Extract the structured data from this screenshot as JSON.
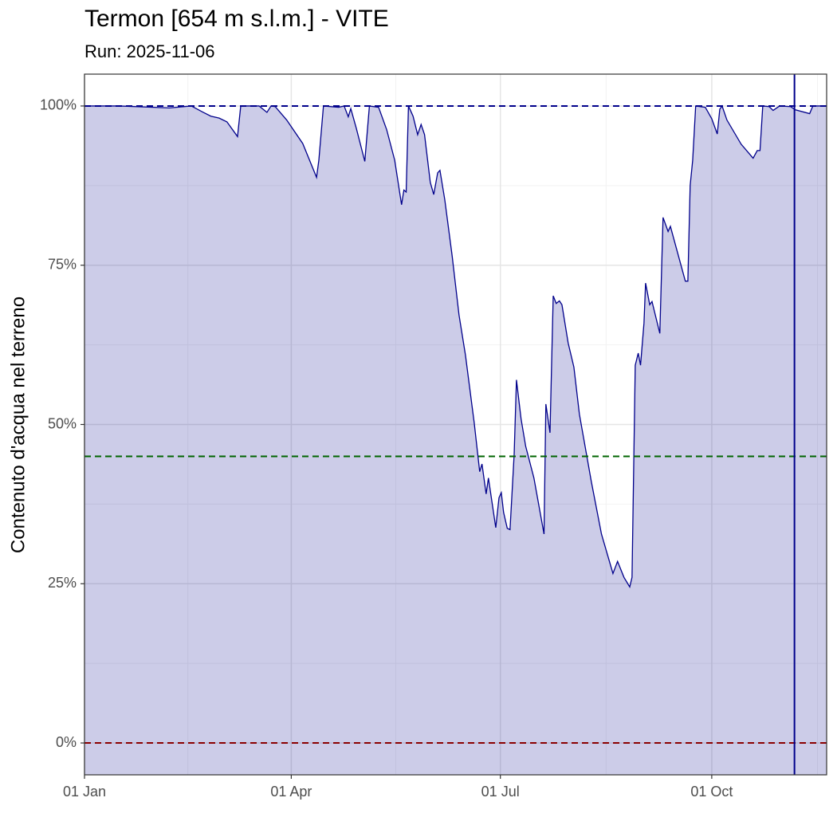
{
  "chart_data": {
    "type": "area",
    "title": "Termon [654 m s.l.m.] - VITE",
    "subtitle": "Run: 2025-11-06",
    "ylabel": "Contenuto d'acqua nel terreno",
    "x": [
      0,
      15,
      37,
      46.5,
      51.7,
      55,
      58.6,
      62,
      66.6,
      68,
      76,
      79.4,
      81.2,
      83,
      88,
      95,
      101,
      102,
      104,
      110.6,
      113,
      114.8,
      115.9,
      118.3,
      122,
      124,
      128,
      131.5,
      135,
      138,
      139,
      140,
      141,
      143,
      145,
      146.5,
      148,
      150.5,
      152,
      153.7,
      154.7,
      156.8,
      160,
      163,
      165.8,
      169.6,
      172,
      173,
      174.8,
      175.8,
      179,
      180.4,
      181.4,
      182.4,
      184,
      185.2,
      187,
      188,
      190,
      192,
      195.6,
      200,
      200.8,
      202.6,
      204,
      205.3,
      206.7,
      207.8,
      210.5,
      213,
      215.4,
      220.6,
      225,
      230,
      232,
      234.8,
      237.3,
      238.3,
      239.7,
      241,
      242,
      243.5,
      244.2,
      246,
      247,
      250.4,
      251.8,
      254,
      255,
      261.5,
      262.6,
      263.6,
      264.7,
      266,
      270.2,
      273,
      275.4,
      276.5,
      277.5,
      279.6,
      285.8,
      291,
      292.8,
      294,
      295.2,
      298,
      299.7,
      302.5,
      307.3,
      309.4,
      315.6,
      317,
      323
    ],
    "values": [
      100,
      100,
      99.7,
      100,
      99,
      98.4,
      98.1,
      97.5,
      95.2,
      100,
      100,
      99,
      100,
      99.9,
      97.8,
      94.1,
      88.8,
      91.5,
      100,
      99.8,
      100,
      98.3,
      99.6,
      96.5,
      91.3,
      100,
      99.8,
      96.3,
      91.5,
      84.5,
      86.8,
      86.5,
      100,
      98.4,
      95.5,
      97.1,
      95.5,
      88,
      86.1,
      89.5,
      89.9,
      85.3,
      76.5,
      67.2,
      60.9,
      50.3,
      42.6,
      43.8,
      39.1,
      41.6,
      33.8,
      38.5,
      39.3,
      36.2,
      33.7,
      33.5,
      45.3,
      57,
      50.9,
      46.6,
      41.6,
      32.8,
      53.2,
      48.7,
      70.2,
      69,
      69.4,
      68.8,
      62.8,
      59,
      51.6,
      41,
      32.8,
      26.6,
      28.5,
      26,
      24.5,
      26,
      59.3,
      61.2,
      59.3,
      65.9,
      72.2,
      68.8,
      69.3,
      64.3,
      82.5,
      80.3,
      81.1,
      72.5,
      72.5,
      87.5,
      91.5,
      100,
      99.8,
      98,
      95.6,
      99.5,
      100,
      97.8,
      94,
      91.8,
      93,
      93,
      100,
      99.9,
      99.3,
      100,
      99.9,
      99.4,
      98.8,
      100,
      100
    ],
    "color": "#00008b",
    "fill": "rgba(0,0,139,0.2)",
    "xlim": [
      0,
      323
    ],
    "ylim": [
      -5,
      105
    ],
    "xticks": [
      {
        "value": 0,
        "label": "01 Jan"
      },
      {
        "value": 90,
        "label": "01 Apr"
      },
      {
        "value": 181,
        "label": "01 Jul"
      },
      {
        "value": 273,
        "label": "01 Oct"
      }
    ],
    "yticks": [
      {
        "value": 0,
        "label": "0%"
      },
      {
        "value": 25,
        "label": "25%"
      },
      {
        "value": 50,
        "label": "50%"
      },
      {
        "value": 75,
        "label": "75%"
      },
      {
        "value": 100,
        "label": "100%"
      }
    ],
    "grid": true,
    "hlines": [
      {
        "value": 100,
        "color": "#00008b"
      },
      {
        "value": 45,
        "color": "#006400"
      },
      {
        "value": 0,
        "color": "#8b0000"
      }
    ],
    "vline": {
      "value": 309,
      "color": "#00008b"
    }
  }
}
